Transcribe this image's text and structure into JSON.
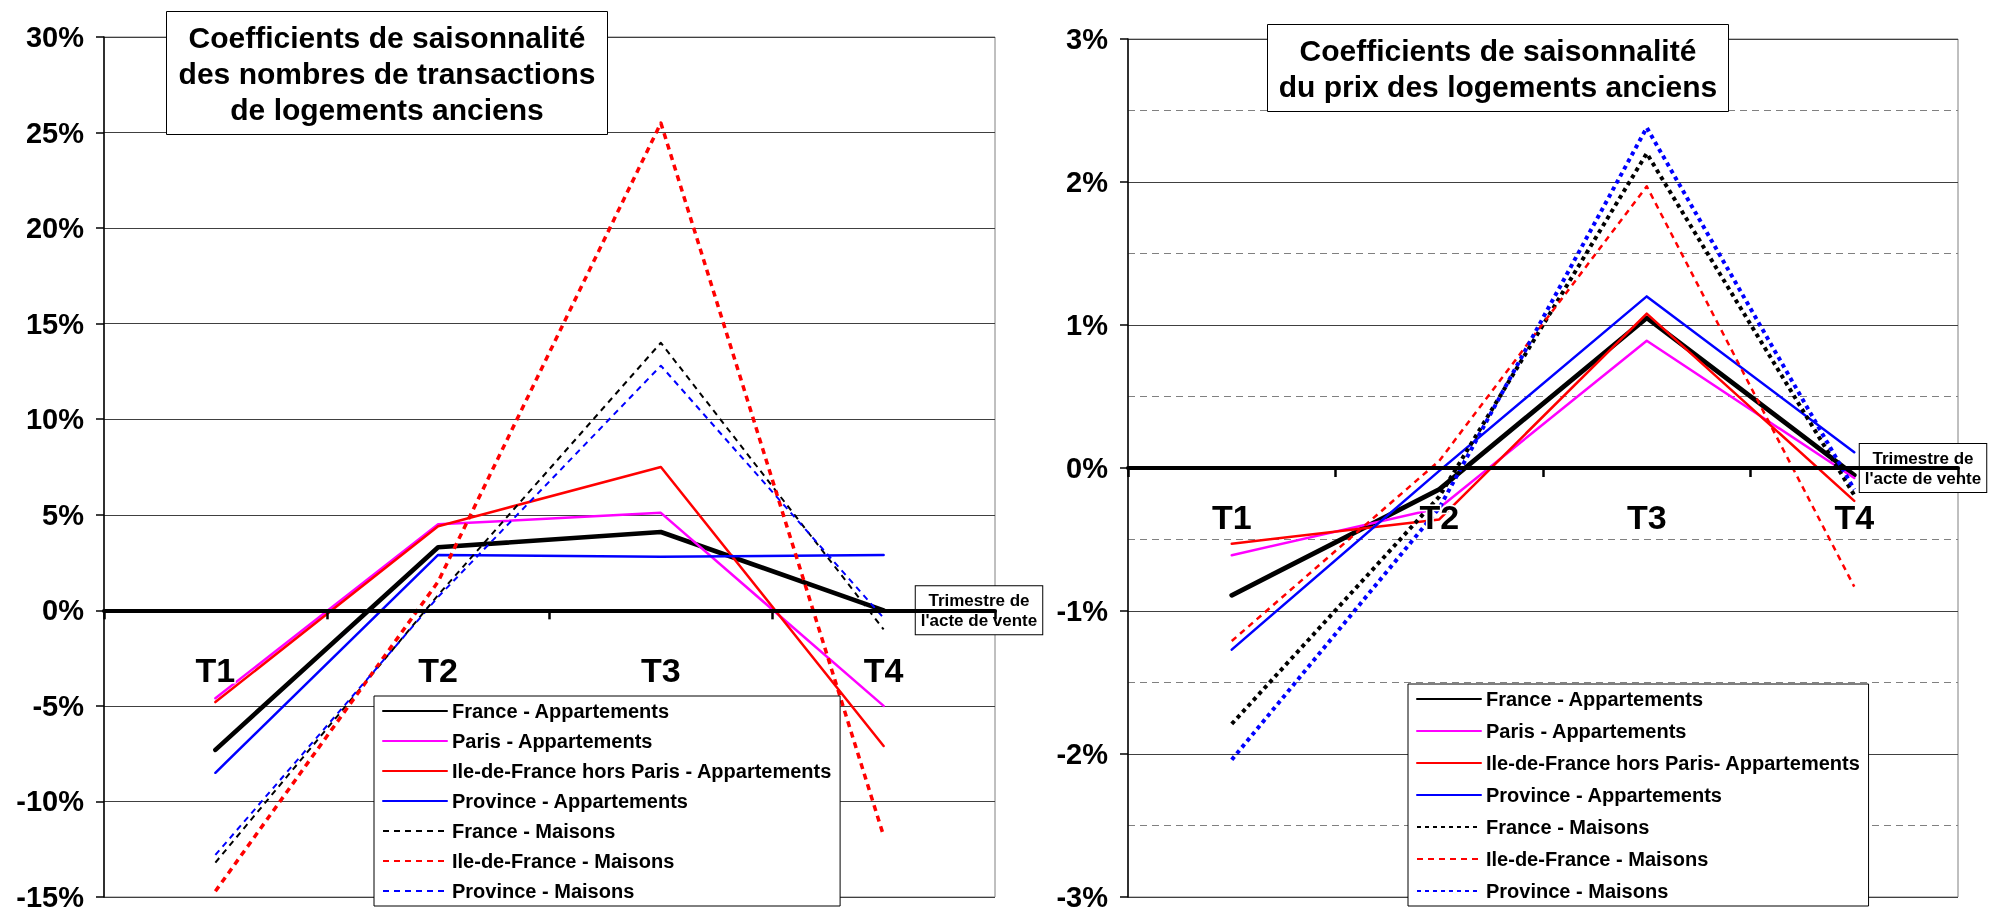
{
  "chart_data": [
    {
      "type": "line",
      "title": "Coefficients de saisonnalité\ndes nombres de transactions\nde logements anciens",
      "xlabel": "Trimestre de l'acte de vente",
      "categories": [
        "T1",
        "T2",
        "T3",
        "T4"
      ],
      "series": [
        {
          "name": "France - Appartements",
          "color": "#000000",
          "values": [
            -7.3,
            3.3,
            4.1,
            0.0
          ]
        },
        {
          "name": "Paris - Appartements",
          "color": "#ff00ff",
          "values": [
            -4.6,
            4.5,
            5.1,
            -5.0
          ]
        },
        {
          "name": "Ile-de-France hors Paris - Appartements",
          "color": "#ff0000",
          "values": [
            -4.8,
            4.4,
            7.5,
            -7.1
          ]
        },
        {
          "name": "Province - Appartements",
          "color": "#0000ff",
          "values": [
            -8.5,
            2.9,
            2.8,
            2.9
          ]
        },
        {
          "name": "France - Maisons",
          "color": "#000000",
          "line_style": "dashed",
          "values": [
            -13.2,
            0.8,
            14.0,
            -1.0
          ]
        },
        {
          "name": "Ile-de-France - Maisons",
          "color": "#ff0000",
          "line_style": "dashed",
          "values": [
            -14.7,
            1.5,
            25.5,
            -11.8
          ]
        },
        {
          "name": "Province - Maisons",
          "color": "#0000ff",
          "line_style": "dashed",
          "values": [
            -12.8,
            0.7,
            12.8,
            -0.4
          ]
        }
      ],
      "ylim": [
        -15,
        30
      ],
      "yticks": [
        {
          "value": -15,
          "label": "-15%"
        },
        {
          "value": -10,
          "label": "-10%"
        },
        {
          "value": -5,
          "label": "-5%"
        },
        {
          "value": 0,
          "label": "0%"
        },
        {
          "value": 5,
          "label": "5%"
        },
        {
          "value": 10,
          "label": "10%"
        },
        {
          "value": 15,
          "label": "15%"
        },
        {
          "value": 20,
          "label": "20%"
        },
        {
          "value": 25,
          "label": "25%"
        },
        {
          "value": 30,
          "label": "30%"
        }
      ],
      "grid": "y",
      "legend": "bottom",
      "marker": "none",
      "line_style": "solid"
    },
    {
      "type": "line",
      "title": "Coefficients de saisonnalité\ndu prix des logements anciens",
      "xlabel": "Trimestre de l'acte de vente",
      "categories": [
        "T1",
        "T2",
        "T3",
        "T4"
      ],
      "series": [
        {
          "name": "France - Appartements",
          "color": "#000000",
          "values": [
            -0.89,
            -0.15,
            1.05,
            -0.05
          ]
        },
        {
          "name": "Paris - Appartements",
          "color": "#ff00ff",
          "values": [
            -0.61,
            -0.28,
            0.89,
            -0.07
          ]
        },
        {
          "name": "Ile-de-France hors Paris- Appartements",
          "color": "#ff0000",
          "values": [
            -0.53,
            -0.36,
            1.08,
            -0.23
          ]
        },
        {
          "name": "Province - Appartements",
          "color": "#0000ff",
          "values": [
            -1.27,
            -0.02,
            1.2,
            0.11
          ]
        },
        {
          "name": "France - Maisons",
          "color": "#000000",
          "line_style": "dotted",
          "values": [
            -1.79,
            -0.2,
            2.2,
            -0.19
          ]
        },
        {
          "name": "Ile-de-France - Maisons",
          "color": "#ff0000",
          "line_style": "dashed",
          "values": [
            -1.21,
            0.05,
            1.97,
            -0.83
          ]
        },
        {
          "name": "Province - Maisons",
          "color": "#0000ff",
          "line_style": "dotted",
          "values": [
            -2.04,
            -0.28,
            2.38,
            -0.15
          ]
        }
      ],
      "ylim": [
        -3,
        3
      ],
      "yticks": [
        {
          "value": -3,
          "label": "-3%"
        },
        {
          "value": -2.5,
          "label": null
        },
        {
          "value": -2,
          "label": "-2%"
        },
        {
          "value": -1.5,
          "label": null
        },
        {
          "value": -1,
          "label": "-1%"
        },
        {
          "value": -0.5,
          "label": null
        },
        {
          "value": 0,
          "label": "0%"
        },
        {
          "value": 0.5,
          "label": null
        },
        {
          "value": 1,
          "label": "1%"
        },
        {
          "value": 1.5,
          "label": null
        },
        {
          "value": 2,
          "label": "2%"
        },
        {
          "value": 2.5,
          "label": null
        },
        {
          "value": 3,
          "label": "3%"
        }
      ],
      "grid": "y",
      "legend": "bottom",
      "marker": "none",
      "line_style": "solid"
    }
  ]
}
